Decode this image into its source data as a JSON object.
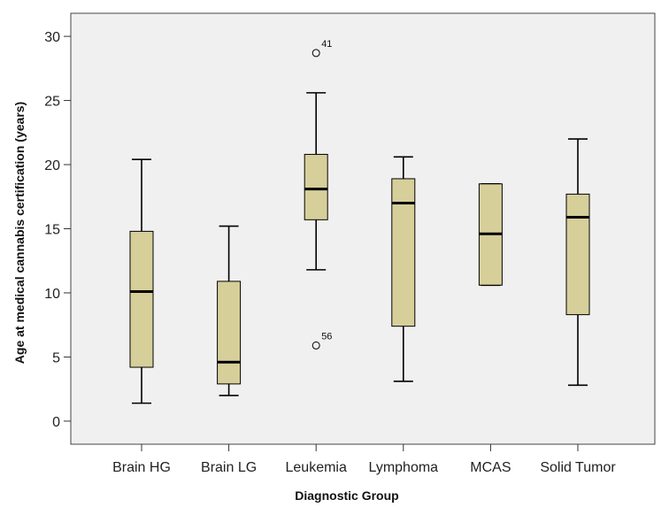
{
  "chart_data": {
    "type": "boxplot",
    "title": "",
    "xlabel": "Diagnostic Group",
    "ylabel": "Age at medical cannabis certification (years)",
    "ylim": [
      -1.8,
      31.8
    ],
    "yticks": [
      0,
      5,
      10,
      15,
      20,
      25,
      30
    ],
    "ytick_labels": [
      "0",
      "5",
      "10",
      "15",
      "20",
      "25",
      "30"
    ],
    "grid": false,
    "colors": {
      "plot_background": "#f0f0f0",
      "box_fill": "#d6cf9a",
      "stroke": "#000000"
    },
    "categories": [
      "Brain HG",
      "Brain LG",
      "Leukemia",
      "Lymphoma",
      "MCAS",
      "Solid Tumor"
    ],
    "boxes": [
      {
        "category": "Brain HG",
        "whisker_low": 1.4,
        "q1": 4.2,
        "median": 10.1,
        "q3": 14.8,
        "whisker_high": 20.4,
        "outliers": []
      },
      {
        "category": "Brain LG",
        "whisker_low": 2.0,
        "q1": 2.9,
        "median": 4.6,
        "q3": 10.9,
        "whisker_high": 15.2,
        "outliers": []
      },
      {
        "category": "Leukemia",
        "whisker_low": 11.8,
        "q1": 15.7,
        "median": 18.1,
        "q3": 20.8,
        "whisker_high": 25.6,
        "outliers": [
          {
            "value": 28.7,
            "label": "41"
          },
          {
            "value": 5.9,
            "label": "56"
          }
        ]
      },
      {
        "category": "Lymphoma",
        "whisker_low": 3.1,
        "q1": 7.4,
        "median": 17.0,
        "q3": 18.9,
        "whisker_high": 20.6,
        "outliers": []
      },
      {
        "category": "MCAS",
        "whisker_low": 10.6,
        "q1": 10.6,
        "median": 14.6,
        "q3": 18.5,
        "whisker_high": 18.5,
        "outliers": []
      },
      {
        "category": "Solid Tumor",
        "whisker_low": 2.8,
        "q1": 8.3,
        "median": 15.9,
        "q3": 17.7,
        "whisker_high": 22.0,
        "outliers": []
      }
    ]
  }
}
